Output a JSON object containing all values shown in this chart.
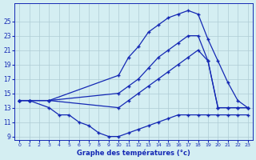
{
  "title": "Graphe des températures (°c)",
  "background_color": "#d4eef2",
  "grid_color": "#aeccd4",
  "line_color": "#1428b4",
  "series": {
    "line1_max": {
      "x": [
        0,
        1,
        3,
        10,
        11,
        12,
        13,
        14,
        15,
        16,
        17,
        18,
        19,
        20,
        21,
        22,
        23
      ],
      "y": [
        14,
        14,
        14,
        17.5,
        20,
        21.5,
        23.5,
        24.5,
        25.5,
        26,
        26.5,
        26,
        22.5,
        19.5,
        16.5,
        14,
        13
      ]
    },
    "line2_avg": {
      "x": [
        0,
        1,
        3,
        10,
        11,
        12,
        13,
        14,
        15,
        16,
        17,
        18,
        19,
        20,
        21,
        22,
        23
      ],
      "y": [
        14,
        14,
        14,
        15,
        16,
        17,
        18.5,
        20,
        21,
        22,
        23,
        23,
        19.5,
        13,
        13,
        13,
        13
      ]
    },
    "line3_min": {
      "x": [
        0,
        1,
        3,
        10,
        11,
        12,
        13,
        14,
        15,
        16,
        17,
        18,
        19,
        20,
        21,
        22,
        23
      ],
      "y": [
        14,
        14,
        14,
        13,
        14,
        15,
        16,
        17,
        18,
        19,
        20,
        21,
        19.5,
        13,
        13,
        13,
        13
      ]
    },
    "line4_low": {
      "x": [
        0,
        1,
        3,
        4,
        5,
        6,
        7,
        8,
        9,
        10,
        11,
        12,
        13,
        14,
        15,
        16,
        17,
        18,
        19,
        20,
        21,
        22,
        23
      ],
      "y": [
        14,
        14,
        13,
        12,
        12,
        11,
        10.5,
        9.5,
        9,
        9,
        9.5,
        10,
        10.5,
        11,
        11.5,
        12,
        12,
        12,
        12,
        12,
        12,
        12,
        12
      ]
    }
  },
  "ylim": [
    8.5,
    27.5
  ],
  "yticks": [
    9,
    11,
    13,
    15,
    17,
    19,
    21,
    23,
    25
  ],
  "xlim": [
    -0.5,
    23.5
  ],
  "xticks": [
    0,
    1,
    2,
    3,
    4,
    5,
    6,
    7,
    8,
    9,
    10,
    11,
    12,
    13,
    14,
    15,
    16,
    17,
    18,
    19,
    20,
    21,
    22,
    23
  ]
}
